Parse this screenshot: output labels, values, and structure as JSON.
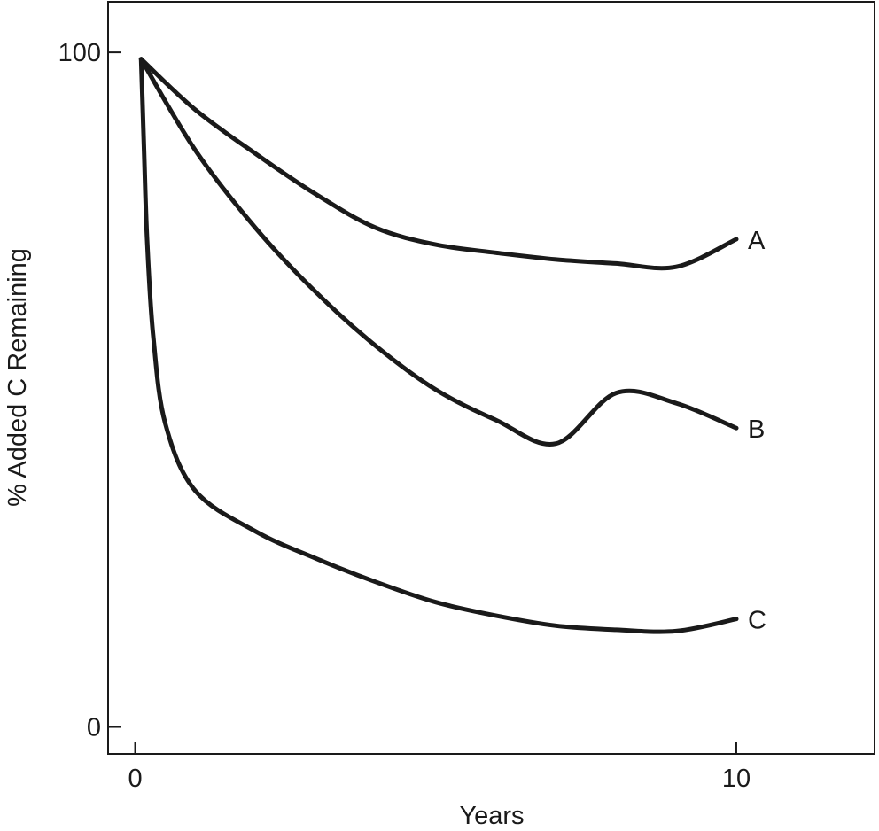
{
  "chart_data": {
    "type": "line",
    "xlabel": "Years",
    "ylabel": "% Added C Remaining",
    "xlim": [
      -0.45,
      12.3
    ],
    "ylim": [
      -4,
      107.5
    ],
    "xticks": [
      0,
      10
    ],
    "yticks": [
      0,
      100
    ],
    "xtick_labels": [
      "0",
      "10"
    ],
    "ytick_labels": [
      "0",
      "100"
    ],
    "grid": false,
    "legend": "none",
    "line_color": "#1a1a1a",
    "series": [
      {
        "name": "A",
        "x": [
          0.1,
          1,
          2,
          3,
          4,
          5,
          6,
          7,
          8,
          9,
          10
        ],
        "y": [
          99,
          91.5,
          85,
          79,
          74,
          71.5,
          70.3,
          69.3,
          68.7,
          68.2,
          72.3
        ]
      },
      {
        "name": "B",
        "x": [
          0.1,
          1,
          2,
          3,
          4,
          5,
          6,
          7,
          8,
          9,
          10
        ],
        "y": [
          99,
          85.5,
          74,
          64.5,
          56.5,
          50,
          45.5,
          42,
          49.5,
          48,
          44.3
        ]
      },
      {
        "name": "C",
        "x": [
          0.1,
          0.15,
          0.2,
          0.3,
          0.5,
          1,
          2,
          3,
          4,
          5,
          6,
          7,
          8,
          9,
          10
        ],
        "y": [
          99,
          85,
          72,
          58,
          45,
          35,
          29,
          25,
          21.5,
          18.5,
          16.5,
          15,
          14.4,
          14.2,
          16
        ]
      }
    ]
  }
}
